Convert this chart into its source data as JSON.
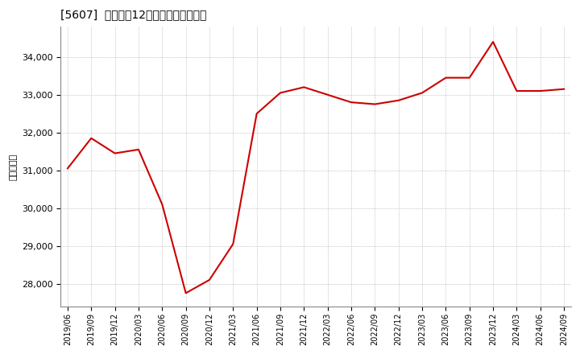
{
  "title": "[5607]  売上高の12か月移動合計の推移",
  "ylabel": "（百万円）",
  "line_color": "#cc0000",
  "background_color": "#ffffff",
  "plot_bg_color": "#ffffff",
  "grid_color": "#999999",
  "ylim": [
    27400,
    34800
  ],
  "yticks": [
    28000,
    29000,
    30000,
    31000,
    32000,
    33000,
    34000
  ],
  "dates": [
    "2019/06",
    "2019/09",
    "2019/12",
    "2020/03",
    "2020/06",
    "2020/09",
    "2020/12",
    "2021/03",
    "2021/06",
    "2021/09",
    "2021/12",
    "2022/03",
    "2022/06",
    "2022/09",
    "2022/12",
    "2023/03",
    "2023/06",
    "2023/09",
    "2023/12",
    "2024/03",
    "2024/06",
    "2024/09"
  ],
  "values": [
    31050,
    31850,
    31450,
    31550,
    30100,
    27750,
    28100,
    29050,
    32500,
    33050,
    33200,
    33000,
    32800,
    32750,
    32850,
    33050,
    33450,
    33450,
    34400,
    33100,
    33100,
    33150
  ]
}
